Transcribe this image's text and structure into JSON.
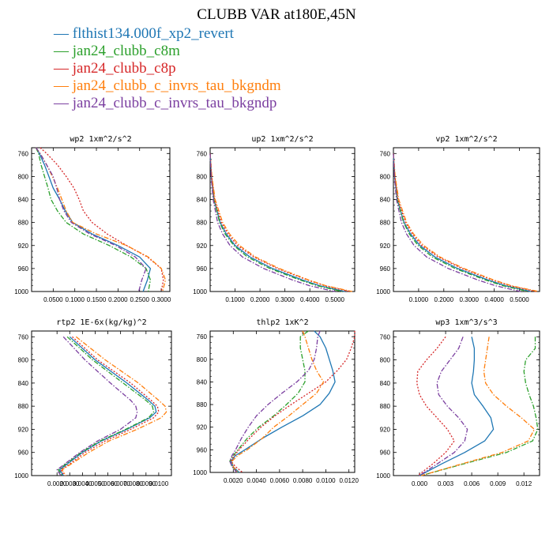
{
  "figure": {
    "title": "CLUBB VAR at180E,45N"
  },
  "legend": [
    {
      "name": "flthist134.000f_xp2_revert",
      "symbol": "—",
      "color": "#1f77b4"
    },
    {
      "name": "jan24_clubb_c8m",
      "symbol": "—",
      "color": "#2ca02c"
    },
    {
      "name": "jan24_clubb_c8p",
      "symbol": "—",
      "color": "#d62728"
    },
    {
      "name": "jan24_clubb_c_invrs_tau_bkgndm",
      "symbol": "—",
      "color": "#ff7f0e"
    },
    {
      "name": "jan24_clubb_c_invrs_tau_bkgndp",
      "symbol": "—",
      "color": "#7b3fa0"
    }
  ],
  "series_styles": [
    {
      "color": "#1f77b4",
      "dash": ""
    },
    {
      "color": "#2ca02c",
      "dash": "6,2,1.5,2"
    },
    {
      "color": "#d62728",
      "dash": "2,2"
    },
    {
      "color": "#ff7f0e",
      "dash": "6,2,1.5,2"
    },
    {
      "color": "#7b3fa0",
      "dash": "6,2,1.5,2"
    }
  ],
  "chart_data": [
    {
      "type": "line",
      "title": "wp2  1xm^2/s^2",
      "xlim": [
        0,
        0.32
      ],
      "ylim": [
        1000,
        750
      ],
      "xticks": [
        0.05,
        0.1,
        0.15,
        0.2,
        0.25,
        0.3
      ],
      "xtick_labels": [
        "0.0500",
        "0.1000",
        "0.1500",
        "0.2000",
        "0.2500",
        "0.3000"
      ],
      "yticks": [
        760,
        800,
        840,
        880,
        920,
        960,
        1000
      ],
      "y": [
        750,
        760,
        780,
        800,
        820,
        840,
        860,
        880,
        900,
        920,
        940,
        960,
        980,
        1000
      ],
      "series": [
        {
          "values": [
            0.01,
            0.018,
            0.03,
            0.04,
            0.05,
            0.065,
            0.078,
            0.095,
            0.14,
            0.2,
            0.25,
            0.275,
            0.268,
            0.258
          ]
        },
        {
          "values": [
            0.01,
            0.016,
            0.022,
            0.03,
            0.038,
            0.045,
            0.06,
            0.08,
            0.12,
            0.18,
            0.23,
            0.265,
            0.275,
            0.27
          ]
        },
        {
          "values": [
            0.02,
            0.035,
            0.06,
            0.08,
            0.098,
            0.11,
            0.12,
            0.14,
            0.175,
            0.22,
            0.268,
            0.3,
            0.305,
            0.3
          ]
        },
        {
          "values": [
            0.01,
            0.02,
            0.035,
            0.048,
            0.06,
            0.07,
            0.08,
            0.095,
            0.15,
            0.22,
            0.27,
            0.3,
            0.31,
            0.303
          ]
        },
        {
          "values": [
            0.01,
            0.02,
            0.035,
            0.05,
            0.058,
            0.065,
            0.075,
            0.092,
            0.135,
            0.195,
            0.24,
            0.265,
            0.255,
            0.248
          ]
        }
      ]
    },
    {
      "type": "line",
      "title": "up2  1xm^2/s^2",
      "xlim": [
        0,
        0.58
      ],
      "ylim": [
        1000,
        750
      ],
      "xticks": [
        0.1,
        0.2,
        0.3,
        0.4,
        0.5
      ],
      "xtick_labels": [
        "0.1000",
        "0.2000",
        "0.3000",
        "0.4000",
        "0.5000"
      ],
      "yticks": [
        760,
        800,
        840,
        880,
        920,
        960,
        1000
      ],
      "y": [
        760,
        800,
        840,
        880,
        900,
        920,
        940,
        960,
        980,
        990,
        1000
      ],
      "series": [
        {
          "values": [
            0.0,
            0.005,
            0.015,
            0.04,
            0.065,
            0.1,
            0.16,
            0.25,
            0.37,
            0.44,
            0.54
          ]
        },
        {
          "values": [
            0.0,
            0.005,
            0.015,
            0.038,
            0.06,
            0.095,
            0.15,
            0.24,
            0.36,
            0.43,
            0.53
          ]
        },
        {
          "values": [
            0.0,
            0.006,
            0.017,
            0.045,
            0.072,
            0.11,
            0.175,
            0.27,
            0.39,
            0.46,
            0.56
          ]
        },
        {
          "values": [
            0.0,
            0.007,
            0.02,
            0.05,
            0.078,
            0.118,
            0.182,
            0.278,
            0.395,
            0.465,
            0.57
          ]
        },
        {
          "values": [
            0.0,
            0.004,
            0.012,
            0.03,
            0.05,
            0.08,
            0.13,
            0.215,
            0.33,
            0.4,
            0.5
          ]
        }
      ]
    },
    {
      "type": "line",
      "title": "vp2  1xm^2/s^2",
      "xlim": [
        0,
        0.58
      ],
      "ylim": [
        1000,
        750
      ],
      "xticks": [
        0.1,
        0.2,
        0.3,
        0.4,
        0.5
      ],
      "xtick_labels": [
        "0.1000",
        "0.2000",
        "0.3000",
        "0.4000",
        "0.5000"
      ],
      "yticks": [
        760,
        800,
        840,
        880,
        920,
        960,
        1000
      ],
      "y": [
        760,
        800,
        840,
        880,
        900,
        920,
        940,
        960,
        980,
        990,
        1000
      ],
      "series": [
        {
          "values": [
            0.0,
            0.005,
            0.015,
            0.042,
            0.068,
            0.105,
            0.165,
            0.255,
            0.375,
            0.445,
            0.545
          ]
        },
        {
          "values": [
            0.0,
            0.005,
            0.015,
            0.04,
            0.063,
            0.098,
            0.155,
            0.245,
            0.365,
            0.435,
            0.535
          ]
        },
        {
          "values": [
            0.0,
            0.006,
            0.018,
            0.048,
            0.075,
            0.113,
            0.178,
            0.272,
            0.392,
            0.462,
            0.565
          ]
        },
        {
          "values": [
            0.0,
            0.007,
            0.021,
            0.052,
            0.08,
            0.12,
            0.185,
            0.28,
            0.398,
            0.468,
            0.575
          ]
        },
        {
          "values": [
            0.0,
            0.004,
            0.012,
            0.032,
            0.052,
            0.082,
            0.132,
            0.218,
            0.335,
            0.405,
            0.505
          ]
        }
      ]
    },
    {
      "type": "line",
      "title": "rtp2  1E-6x(kg/kg)^2",
      "xlim": [
        0,
        0.011
      ],
      "ylim": [
        1000,
        750
      ],
      "xticks": [
        0.002,
        0.003,
        0.004,
        0.005,
        0.006,
        0.007,
        0.008,
        0.009,
        0.01
      ],
      "xtick_labels": [
        "0.0020",
        "0.0030",
        "0.0040",
        "0.0050",
        "0.0060",
        "0.0070",
        "0.0080",
        "0.0090",
        "0.0100"
      ],
      "yticks": [
        760,
        800,
        840,
        880,
        920,
        960,
        1000
      ],
      "y": [
        760,
        800,
        840,
        870,
        880,
        890,
        900,
        920,
        940,
        960,
        980,
        990,
        1000
      ],
      "series": [
        {
          "values": [
            0.003,
            0.005,
            0.0075,
            0.0092,
            0.0097,
            0.0098,
            0.0093,
            0.0075,
            0.0055,
            0.004,
            0.0028,
            0.0022,
            0.0025
          ]
        },
        {
          "values": [
            0.0028,
            0.0048,
            0.0072,
            0.009,
            0.0095,
            0.0096,
            0.0092,
            0.0074,
            0.0054,
            0.0039,
            0.0027,
            0.0021,
            0.0024
          ]
        },
        {
          "values": [
            0.0032,
            0.0052,
            0.0078,
            0.0094,
            0.0099,
            0.01,
            0.0096,
            0.0078,
            0.0058,
            0.0042,
            0.003,
            0.0023,
            0.0026
          ]
        },
        {
          "values": [
            0.0035,
            0.0058,
            0.0084,
            0.01,
            0.0105,
            0.0106,
            0.0102,
            0.0083,
            0.0061,
            0.0045,
            0.0031,
            0.0024,
            0.0027
          ]
        },
        {
          "values": [
            0.0025,
            0.0042,
            0.0062,
            0.0078,
            0.0082,
            0.0083,
            0.0082,
            0.007,
            0.0052,
            0.0038,
            0.0026,
            0.002,
            0.0023
          ]
        }
      ]
    },
    {
      "type": "line",
      "title": "thlp2  1xK^2",
      "xlim": [
        0,
        0.0125
      ],
      "ylim": [
        1000,
        750
      ],
      "xticks": [
        0.002,
        0.004,
        0.006,
        0.008,
        0.01,
        0.012
      ],
      "xtick_labels": [
        "0.0020",
        "0.0040",
        "0.0060",
        "0.0080",
        "0.0100",
        "0.0120"
      ],
      "yticks": [
        760,
        800,
        840,
        880,
        920,
        960,
        1000
      ],
      "y": [
        750,
        760,
        780,
        800,
        820,
        840,
        860,
        880,
        900,
        920,
        940,
        960,
        970,
        980,
        990,
        1000
      ],
      "series": [
        {
          "values": [
            0.009,
            0.0095,
            0.01,
            0.0103,
            0.0106,
            0.0108,
            0.0103,
            0.0095,
            0.008,
            0.0062,
            0.0045,
            0.003,
            0.0022,
            0.0018,
            0.002,
            0.0025
          ]
        },
        {
          "values": [
            0.0085,
            0.0078,
            0.0078,
            0.008,
            0.0082,
            0.0082,
            0.0076,
            0.0066,
            0.0055,
            0.0042,
            0.0032,
            0.0024,
            0.002,
            0.0017,
            0.0019,
            0.0024
          ]
        },
        {
          "values": [
            0.0125,
            0.0125,
            0.0122,
            0.0118,
            0.011,
            0.01,
            0.0085,
            0.007,
            0.0056,
            0.0044,
            0.0034,
            0.0025,
            0.0021,
            0.0018,
            0.0022,
            0.0028
          ]
        },
        {
          "values": [
            0.008,
            0.0082,
            0.0085,
            0.0088,
            0.0092,
            0.0098,
            0.0092,
            0.008,
            0.0068,
            0.0055,
            0.0045,
            0.0032,
            0.0024,
            0.0019,
            0.002,
            0.0024
          ]
        },
        {
          "values": [
            0.0095,
            0.0093,
            0.0092,
            0.009,
            0.0085,
            0.0075,
            0.0062,
            0.005,
            0.004,
            0.0033,
            0.0027,
            0.0022,
            0.0019,
            0.0017,
            0.0019,
            0.0023
          ]
        }
      ]
    },
    {
      "type": "line",
      "title": "wp3  1xm^3/s^3",
      "xlim": [
        -0.003,
        0.0138
      ],
      "ylim": [
        1000,
        750
      ],
      "xticks": [
        0.0,
        0.003,
        0.006,
        0.009,
        0.012
      ],
      "xtick_labels": [
        "0.000",
        "0.003",
        "0.006",
        "0.009",
        "0.012"
      ],
      "yticks": [
        760,
        800,
        840,
        880,
        920,
        960,
        1000
      ],
      "y": [
        760,
        780,
        800,
        820,
        840,
        860,
        880,
        900,
        920,
        940,
        960,
        980,
        1000
      ],
      "series": [
        {
          "values": [
            0.006,
            0.0063,
            0.0063,
            0.0062,
            0.006,
            0.0063,
            0.0073,
            0.0082,
            0.0085,
            0.0075,
            0.0052,
            0.0025,
            0.0
          ]
        },
        {
          "values": [
            0.0133,
            0.0133,
            0.0122,
            0.012,
            0.0122,
            0.0126,
            0.0131,
            0.0134,
            0.0136,
            0.013,
            0.01,
            0.005,
            0.0002
          ]
        },
        {
          "values": [
            0.003,
            0.002,
            0.0008,
            -0.0002,
            -0.0003,
            0.0,
            0.0008,
            0.002,
            0.0032,
            0.004,
            0.003,
            0.0015,
            -0.0002
          ]
        },
        {
          "values": [
            0.008,
            0.0078,
            0.0076,
            0.0074,
            0.0076,
            0.0085,
            0.01,
            0.0117,
            0.0132,
            0.0125,
            0.0095,
            0.0048,
            0.0002
          ]
        },
        {
          "values": [
            0.005,
            0.0045,
            0.0035,
            0.0025,
            0.002,
            0.0022,
            0.0032,
            0.0045,
            0.0055,
            0.0052,
            0.004,
            0.002,
            0.0
          ]
        }
      ]
    }
  ]
}
